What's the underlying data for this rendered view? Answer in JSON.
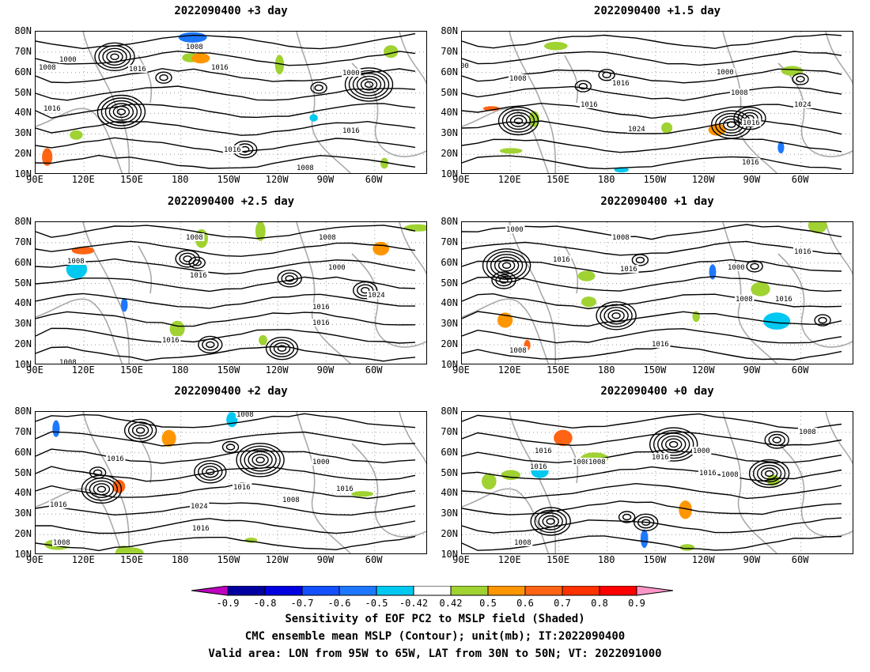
{
  "panels": [
    {
      "title": "2022090400 +3 day",
      "labels": [
        "1008",
        "1000",
        "1016",
        "1008",
        "1016",
        "1000",
        "1016",
        "1016",
        "1016",
        "1008"
      ]
    },
    {
      "title": "2022090400 +1.5 day",
      "labels": [
        "00",
        "1008",
        "1000",
        "1016",
        "1008",
        "1016",
        "1024",
        "1016",
        "1016",
        "1024"
      ]
    },
    {
      "title": "2022090400 +2.5 day",
      "labels": [
        "1008",
        "1008",
        "1016",
        "1008",
        "1000",
        "1016",
        "1016",
        "1024",
        "1016",
        "1008"
      ]
    },
    {
      "title": "2022090400 +1 day",
      "labels": [
        "1000",
        "1008",
        "1016",
        "1000",
        "1008",
        "1016",
        "1016",
        "1008",
        "1016",
        "1016"
      ]
    },
    {
      "title": "2022090400 +2 day",
      "labels": [
        "1008",
        "1016",
        "1000",
        "1016",
        "1016",
        "1008",
        "1016",
        "1024",
        "1016",
        "1008"
      ]
    },
    {
      "title": "2022090400 +0 day",
      "labels": [
        "1016",
        "1008",
        "1016",
        "1000",
        "1016",
        "1008",
        "1008",
        "1008",
        "1016",
        "1008"
      ]
    }
  ],
  "lat_ticks": [
    "80N",
    "70N",
    "60N",
    "50N",
    "40N",
    "30N",
    "20N",
    "10N"
  ],
  "lon_ticks": [
    "90E",
    "120E",
    "150E",
    "180",
    "150W",
    "120W",
    "90W",
    "60W"
  ],
  "colorbar": {
    "labels": [
      "-0.9",
      "-0.8",
      "-0.7",
      "-0.6",
      "-0.5",
      "-0.42",
      "0.42",
      "0.5",
      "0.6",
      "0.7",
      "0.8",
      "0.9"
    ],
    "colors": [
      "#c000c0",
      "#0000a0",
      "#0000e0",
      "#1450ff",
      "#1e78ff",
      "#00c8f0",
      "#ffffff",
      "#a0d232",
      "#ff9600",
      "#ff6414",
      "#ff3200",
      "#ff0000",
      "#ff96c8"
    ]
  },
  "caption": {
    "line1": "Sensitivity of EOF PC2 to MSLP field (Shaded)",
    "line2": "CMC ensemble mean MSLP (Contour); unit(mb); IT:2022090400",
    "line3": "Valid area: LON from 95W to 65W, LAT from 30N to 50N; VT: 2022091000"
  }
}
